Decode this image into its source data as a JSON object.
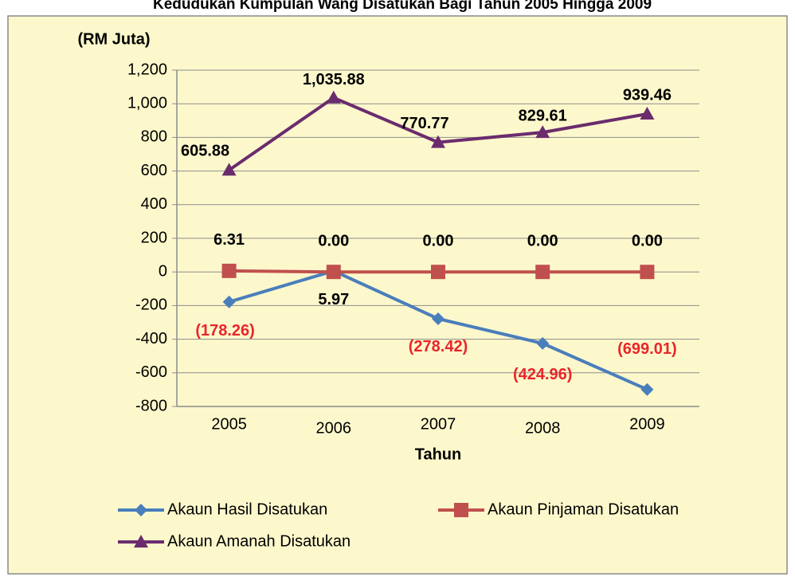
{
  "chart_data": {
    "type": "line",
    "title": "Kedudukan Kumpulan Wang Disatukan Bagi Tahun 2005 Hingga 2009",
    "y_label": "(RM Juta)",
    "x_label": "Tahun",
    "categories": [
      "2005",
      "2006",
      "2007",
      "2008",
      "2009"
    ],
    "ylim": [
      -800,
      1200
    ],
    "yticks": [
      -800,
      -600,
      -400,
      -200,
      0,
      200,
      400,
      600,
      800,
      {
        "value": 1000,
        "label": "1,000"
      },
      {
        "value": 1200,
        "label": "1,200"
      }
    ],
    "grid": true,
    "series": [
      {
        "name": "Akaun Hasil Disatukan",
        "color": "#4a7ebb",
        "marker": "diamond",
        "values": [
          -178.26,
          5.97,
          -278.42,
          -424.96,
          -699.01
        ],
        "value_labels": [
          "(178.26)",
          "5.97",
          "(278.42)",
          "(424.96)",
          "(699.01)"
        ]
      },
      {
        "name": "Akaun Pinjaman Disatukan",
        "color": "#c0504d",
        "marker": "square",
        "values": [
          6.31,
          0,
          0,
          0,
          0
        ],
        "value_labels": [
          "6.31",
          "0.00",
          "0.00",
          "0.00",
          "0.00"
        ]
      },
      {
        "name": "Akaun Amanah Disatukan",
        "color": "#6b2c6e",
        "marker": "triangle",
        "values": [
          605.88,
          1035.88,
          770.77,
          829.61,
          939.46
        ],
        "value_labels": [
          "605.88",
          "1,035.88",
          "770.77",
          "829.61",
          "939.46"
        ]
      }
    ]
  }
}
